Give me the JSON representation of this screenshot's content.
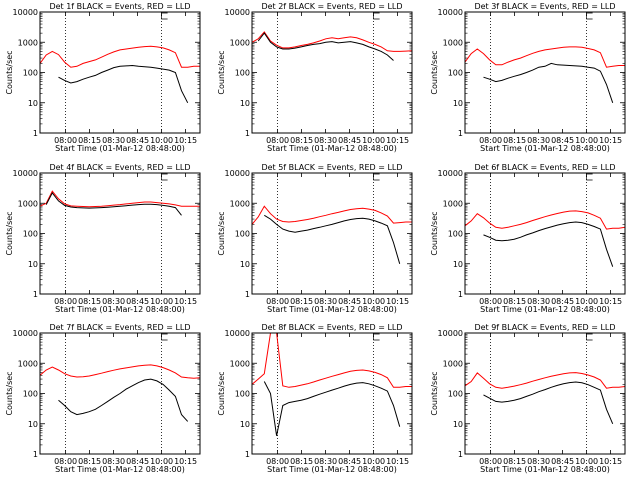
{
  "chart_data": [
    {
      "type": "line",
      "title": "Det 1f BLACK = Events, RED = LLD",
      "xlabel": "Start Time (01-Mar-12 08:48:00)",
      "ylabel": "Counts/sec",
      "x_ticks": [
        "08:00",
        "08:15",
        "08:30",
        "08:45",
        "10:00",
        "10:15"
      ],
      "y_ticks": [
        "1",
        "10",
        "100",
        "1000",
        "10000"
      ],
      "ylim": [
        1,
        10000
      ],
      "log_y": true,
      "series": [
        {
          "name": "LLD",
          "color": "#ff0000",
          "values": [
            200,
            380,
            500,
            390,
            220,
            150,
            160,
            200,
            230,
            260,
            320,
            400,
            480,
            560,
            600,
            640,
            680,
            720,
            740,
            700,
            650,
            560,
            450,
            150,
            150,
            160,
            160
          ]
        },
        {
          "name": "Events",
          "color": "#000000",
          "values": [
            null,
            null,
            null,
            70,
            55,
            45,
            50,
            60,
            70,
            80,
            100,
            120,
            145,
            160,
            165,
            170,
            160,
            155,
            150,
            140,
            130,
            120,
            100,
            25,
            10,
            null,
            null
          ]
        }
      ]
    },
    {
      "type": "line",
      "title": "Det 2f BLACK = Events, RED = LLD",
      "xlabel": "Start Time (01-Mar-12 08:48:00)",
      "ylabel": "Counts/sec",
      "x_ticks": [
        "08:00",
        "08:15",
        "08:30",
        "08:45",
        "10:00",
        "10:15"
      ],
      "y_ticks": [
        "1",
        "10",
        "100",
        "1000",
        "10000"
      ],
      "ylim": [
        1,
        10000
      ],
      "log_y": true,
      "series": [
        {
          "name": "LLD",
          "color": "#ff0000",
          "values": [
            1000,
            1300,
            2200,
            1100,
            800,
            650,
            650,
            700,
            780,
            850,
            950,
            1100,
            1300,
            1400,
            1300,
            1400,
            1500,
            1400,
            1200,
            1000,
            850,
            700,
            520,
            500,
            500,
            510,
            520
          ]
        },
        {
          "name": "Events",
          "color": "#000000",
          "values": [
            null,
            1100,
            2000,
            1000,
            700,
            600,
            600,
            640,
            700,
            780,
            850,
            900,
            1000,
            1050,
            950,
            1000,
            1050,
            950,
            850,
            700,
            600,
            500,
            380,
            250,
            null,
            null,
            null
          ]
        }
      ]
    },
    {
      "type": "line",
      "title": "Det 3f BLACK = Events, RED = LLD",
      "xlabel": "Start Time (01-Mar-12 08:48:00)",
      "ylabel": "Counts/sec",
      "x_ticks": [
        "08:00",
        "08:15",
        "08:30",
        "08:45",
        "10:00",
        "10:15"
      ],
      "y_ticks": [
        "1",
        "10",
        "100",
        "1000",
        "10000"
      ],
      "ylim": [
        1,
        10000
      ],
      "log_y": true,
      "series": [
        {
          "name": "LLD",
          "color": "#ff0000",
          "values": [
            220,
            420,
            600,
            420,
            260,
            180,
            180,
            220,
            260,
            300,
            360,
            430,
            500,
            560,
            600,
            640,
            680,
            700,
            700,
            680,
            620,
            560,
            450,
            150,
            160,
            170,
            170
          ]
        },
        {
          "name": "Events",
          "color": "#000000",
          "values": [
            null,
            null,
            null,
            70,
            60,
            50,
            55,
            65,
            75,
            85,
            100,
            120,
            150,
            160,
            200,
            180,
            175,
            170,
            165,
            160,
            150,
            140,
            110,
            40,
            10,
            null,
            null
          ]
        }
      ]
    },
    {
      "type": "line",
      "title": "Det 4f BLACK = Events, RED = LLD",
      "xlabel": "Start Time (01-Mar-12 08:48:00)",
      "ylabel": "Counts/sec",
      "x_ticks": [
        "08:00",
        "08:15",
        "08:30",
        "08:45",
        "10:00",
        "10:15"
      ],
      "y_ticks": [
        "1",
        "10",
        "100",
        "1000",
        "10000"
      ],
      "ylim": [
        1,
        10000
      ],
      "log_y": true,
      "series": [
        {
          "name": "LLD",
          "color": "#ff0000",
          "values": [
            800,
            1000,
            2500,
            1400,
            950,
            820,
            800,
            780,
            770,
            780,
            800,
            830,
            870,
            900,
            950,
            1000,
            1050,
            1100,
            1100,
            1050,
            1000,
            950,
            880,
            800,
            800,
            800,
            800
          ]
        },
        {
          "name": "Events",
          "color": "#000000",
          "values": [
            null,
            900,
            2200,
            1200,
            850,
            750,
            720,
            700,
            690,
            700,
            720,
            740,
            770,
            800,
            830,
            870,
            900,
            920,
            920,
            900,
            850,
            800,
            720,
            400,
            null,
            null,
            null
          ]
        }
      ]
    },
    {
      "type": "line",
      "title": "Det 5f BLACK = Events, RED = LLD",
      "xlabel": "Start Time (01-Mar-12 08:48:00)",
      "ylabel": "Counts/sec",
      "x_ticks": [
        "08:00",
        "08:15",
        "08:30",
        "08:45",
        "10:00",
        "10:15"
      ],
      "y_ticks": [
        "1",
        "10",
        "100",
        "1000",
        "10000"
      ],
      "ylim": [
        1,
        10000
      ],
      "log_y": true,
      "series": [
        {
          "name": "LLD",
          "color": "#ff0000",
          "values": [
            200,
            350,
            800,
            450,
            300,
            250,
            240,
            250,
            270,
            290,
            320,
            360,
            400,
            450,
            500,
            560,
            620,
            660,
            680,
            640,
            580,
            480,
            380,
            220,
            230,
            240,
            240
          ]
        },
        {
          "name": "Events",
          "color": "#000000",
          "values": [
            null,
            null,
            400,
            300,
            200,
            140,
            120,
            110,
            120,
            130,
            145,
            160,
            180,
            200,
            230,
            260,
            290,
            310,
            320,
            300,
            260,
            220,
            180,
            50,
            10,
            null,
            null
          ]
        }
      ]
    },
    {
      "type": "line",
      "title": "Det 6f BLACK = Events, RED = LLD",
      "xlabel": "Start Time (01-Mar-12 08:48:00)",
      "ylabel": "Counts/sec",
      "x_ticks": [
        "08:00",
        "08:15",
        "08:30",
        "08:45",
        "10:00",
        "10:15"
      ],
      "y_ticks": [
        "1",
        "10",
        "100",
        "1000",
        "10000"
      ],
      "ylim": [
        1,
        10000
      ],
      "log_y": true,
      "series": [
        {
          "name": "LLD",
          "color": "#ff0000",
          "values": [
            180,
            260,
            450,
            330,
            220,
            160,
            150,
            160,
            180,
            200,
            230,
            270,
            310,
            360,
            410,
            460,
            510,
            550,
            560,
            530,
            480,
            400,
            320,
            140,
            150,
            150,
            160
          ]
        },
        {
          "name": "Events",
          "color": "#000000",
          "values": [
            null,
            null,
            null,
            90,
            75,
            60,
            58,
            60,
            65,
            75,
            90,
            105,
            125,
            145,
            165,
            190,
            210,
            230,
            240,
            230,
            200,
            170,
            140,
            30,
            8,
            null,
            null
          ]
        }
      ]
    },
    {
      "type": "line",
      "title": "Det 7f BLACK = Events, RED = LLD",
      "xlabel": "Start Time (01-Mar-12 08:48:00)",
      "ylabel": "Counts/sec",
      "x_ticks": [
        "08:00",
        "08:15",
        "08:30",
        "08:45",
        "10:00",
        "10:15"
      ],
      "y_ticks": [
        "1",
        "10",
        "100",
        "1000",
        "10000"
      ],
      "ylim": [
        1,
        10000
      ],
      "log_y": true,
      "series": [
        {
          "name": "LLD",
          "color": "#ff0000",
          "values": [
            400,
            600,
            750,
            600,
            450,
            380,
            350,
            360,
            380,
            420,
            470,
            530,
            590,
            650,
            700,
            760,
            820,
            860,
            880,
            820,
            720,
            600,
            480,
            350,
            330,
            320,
            330
          ]
        },
        {
          "name": "Events",
          "color": "#000000",
          "values": [
            null,
            null,
            null,
            60,
            40,
            25,
            20,
            22,
            25,
            30,
            40,
            55,
            75,
            100,
            140,
            180,
            230,
            280,
            300,
            260,
            200,
            130,
            80,
            20,
            12,
            null,
            null
          ]
        }
      ]
    },
    {
      "type": "line",
      "title": "Det 8f BLACK = Events, RED = LLD",
      "xlabel": "Start Time (01-Mar-12 08:48:00)",
      "ylabel": "Counts/sec",
      "x_ticks": [
        "08:00",
        "08:15",
        "08:30",
        "08:45",
        "10:00",
        "10:15"
      ],
      "y_ticks": [
        "1",
        "10",
        "100",
        "1000",
        "10000"
      ],
      "ylim": [
        1,
        10000
      ],
      "log_y": true,
      "series": [
        {
          "name": "LLD",
          "color": "#ff0000",
          "values": [
            200,
            300,
            450,
            10000,
            10000,
            180,
            160,
            170,
            190,
            210,
            240,
            280,
            320,
            370,
            420,
            480,
            540,
            580,
            600,
            560,
            500,
            420,
            330,
            160,
            160,
            170,
            170
          ]
        },
        {
          "name": "Events",
          "color": "#000000",
          "values": [
            null,
            null,
            250,
            100,
            4,
            40,
            50,
            55,
            60,
            68,
            80,
            95,
            110,
            130,
            150,
            175,
            200,
            220,
            230,
            210,
            180,
            150,
            120,
            40,
            8,
            null,
            null
          ]
        }
      ]
    },
    {
      "type": "line",
      "title": "Det 9f BLACK = Events, RED = LLD",
      "xlabel": "Start Time (01-Mar-12 08:48:00)",
      "ylabel": "Counts/sec",
      "x_ticks": [
        "08:00",
        "08:15",
        "08:30",
        "08:45",
        "10:00",
        "10:15"
      ],
      "y_ticks": [
        "1",
        "10",
        "100",
        "1000",
        "10000"
      ],
      "ylim": [
        1,
        10000
      ],
      "log_y": true,
      "series": [
        {
          "name": "LLD",
          "color": "#ff0000",
          "values": [
            180,
            250,
            480,
            320,
            210,
            160,
            150,
            160,
            175,
            195,
            220,
            255,
            290,
            330,
            370,
            410,
            450,
            480,
            490,
            460,
            410,
            350,
            280,
            150,
            160,
            160,
            170
          ]
        },
        {
          "name": "Events",
          "color": "#000000",
          "values": [
            null,
            null,
            null,
            90,
            70,
            55,
            52,
            55,
            60,
            68,
            80,
            95,
            115,
            135,
            160,
            185,
            210,
            230,
            240,
            225,
            195,
            160,
            130,
            30,
            10,
            null,
            null
          ]
        }
      ]
    }
  ]
}
